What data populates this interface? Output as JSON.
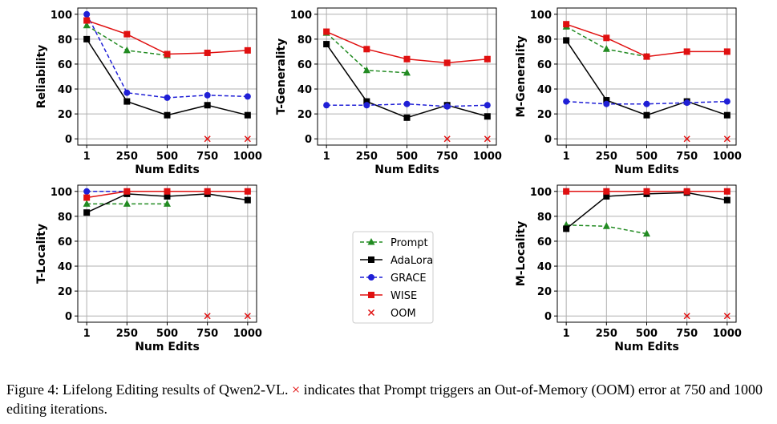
{
  "chart_data": [
    {
      "type": "line",
      "xlabel": "Num Edits",
      "ylabel": "Reliability",
      "categories": [
        "1",
        "250",
        "500",
        "750",
        "1000"
      ],
      "ylim": [
        0,
        100
      ],
      "yticks": [
        0,
        20,
        40,
        60,
        80,
        100
      ],
      "grid": true,
      "series": [
        {
          "name": "Prompt",
          "values": [
            91,
            71,
            67,
            null,
            null
          ]
        },
        {
          "name": "AdaLora",
          "values": [
            80,
            30,
            19,
            27,
            19
          ]
        },
        {
          "name": "GRACE",
          "values": [
            100,
            37,
            33,
            35,
            34
          ]
        },
        {
          "name": "WISE",
          "values": [
            95,
            84,
            68,
            69,
            71
          ]
        },
        {
          "name": "OOM",
          "values": [
            null,
            null,
            null,
            0,
            0
          ]
        }
      ]
    },
    {
      "type": "line",
      "xlabel": "Num Edits",
      "ylabel": "T-Generality",
      "categories": [
        "1",
        "250",
        "500",
        "750",
        "1000"
      ],
      "ylim": [
        0,
        100
      ],
      "yticks": [
        0,
        20,
        40,
        60,
        80,
        100
      ],
      "grid": true,
      "series": [
        {
          "name": "Prompt",
          "values": [
            85,
            55,
            53,
            null,
            null
          ]
        },
        {
          "name": "AdaLora",
          "values": [
            76,
            30,
            17,
            27,
            18
          ]
        },
        {
          "name": "GRACE",
          "values": [
            27,
            27,
            28,
            26,
            27
          ]
        },
        {
          "name": "WISE",
          "values": [
            86,
            72,
            64,
            61,
            64
          ]
        },
        {
          "name": "OOM",
          "values": [
            null,
            null,
            null,
            0,
            0
          ]
        }
      ]
    },
    {
      "type": "line",
      "xlabel": "Num Edits",
      "ylabel": "M-Generality",
      "categories": [
        "1",
        "250",
        "500",
        "750",
        "1000"
      ],
      "ylim": [
        0,
        100
      ],
      "yticks": [
        0,
        20,
        40,
        60,
        80,
        100
      ],
      "grid": true,
      "series": [
        {
          "name": "Prompt",
          "values": [
            90,
            72,
            66,
            null,
            null
          ]
        },
        {
          "name": "AdaLora",
          "values": [
            79,
            31,
            19,
            30,
            19
          ]
        },
        {
          "name": "GRACE",
          "values": [
            30,
            28,
            28,
            29,
            30
          ]
        },
        {
          "name": "WISE",
          "values": [
            92,
            81,
            66,
            70,
            70
          ]
        },
        {
          "name": "OOM",
          "values": [
            null,
            null,
            null,
            0,
            0
          ]
        }
      ]
    },
    {
      "type": "line",
      "xlabel": "Num Edits",
      "ylabel": "T-Locality",
      "categories": [
        "1",
        "250",
        "500",
        "750",
        "1000"
      ],
      "ylim": [
        0,
        100
      ],
      "yticks": [
        0,
        20,
        40,
        60,
        80,
        100
      ],
      "grid": true,
      "series": [
        {
          "name": "Prompt",
          "values": [
            90,
            90,
            90,
            null,
            null
          ]
        },
        {
          "name": "AdaLora",
          "values": [
            83,
            98,
            96,
            98,
            93
          ]
        },
        {
          "name": "GRACE",
          "values": [
            100,
            100,
            100,
            100,
            100
          ]
        },
        {
          "name": "WISE",
          "values": [
            95,
            100,
            100,
            100,
            100
          ]
        },
        {
          "name": "OOM",
          "values": [
            null,
            null,
            null,
            0,
            0
          ]
        }
      ]
    },
    {
      "type": "line",
      "xlabel": "Num Edits",
      "ylabel": "M-Locality",
      "categories": [
        "1",
        "250",
        "500",
        "750",
        "1000"
      ],
      "ylim": [
        0,
        100
      ],
      "yticks": [
        0,
        20,
        40,
        60,
        80,
        100
      ],
      "grid": true,
      "series": [
        {
          "name": "Prompt",
          "values": [
            73,
            72,
            66,
            null,
            null
          ]
        },
        {
          "name": "AdaLora",
          "values": [
            70,
            96,
            98,
            99,
            93
          ]
        },
        {
          "name": "GRACE",
          "values": [
            100,
            100,
            100,
            100,
            100
          ]
        },
        {
          "name": "WISE",
          "values": [
            100,
            100,
            100,
            100,
            100
          ]
        },
        {
          "name": "OOM",
          "values": [
            null,
            null,
            null,
            0,
            0
          ]
        }
      ]
    }
  ],
  "legend": {
    "placement": "center",
    "entries": [
      {
        "name": "Prompt",
        "color": "#228b22",
        "dash": "dashed",
        "marker": "triangle"
      },
      {
        "name": "AdaLora",
        "color": "#000000",
        "dash": "solid",
        "marker": "square"
      },
      {
        "name": "GRACE",
        "color": "#1f1fd6",
        "dash": "dashed",
        "marker": "circle"
      },
      {
        "name": "WISE",
        "color": "#e01010",
        "dash": "solid",
        "marker": "square"
      },
      {
        "name": "OOM",
        "color": "#e01010",
        "dash": "none",
        "marker": "x"
      }
    ]
  },
  "caption": {
    "prefix": "Figure 4: Lifelong Editing results of Qwen2-VL.",
    "symbol": "×",
    "suffix": "indicates that Prompt triggers an Out-of-Memory (OOM) error at 750 and 1000 editing iterations."
  }
}
